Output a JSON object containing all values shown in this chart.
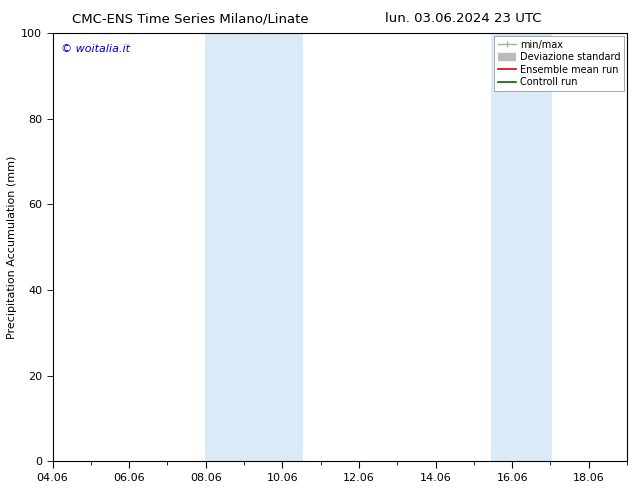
{
  "title_left": "CMC-ENS Time Series Milano/Linate",
  "title_right": "lun. 03.06.2024 23 UTC",
  "ylabel": "Precipitation Accumulation (mm)",
  "watermark": "© woitalia.it",
  "watermark_color": "#0000cc",
  "ylim": [
    0,
    100
  ],
  "yticks": [
    0,
    20,
    40,
    60,
    80,
    100
  ],
  "x_min": 4.0,
  "x_max": 19.0,
  "xtick_labels": [
    "04.06",
    "06.06",
    "08.06",
    "10.06",
    "12.06",
    "14.06",
    "16.06",
    "18.06"
  ],
  "xtick_positions": [
    4.0,
    6.0,
    8.0,
    10.0,
    12.0,
    14.0,
    16.0,
    18.0
  ],
  "shaded_bands": [
    {
      "x_start": 7.97,
      "x_end": 10.53
    },
    {
      "x_start": 15.45,
      "x_end": 17.05
    }
  ],
  "shaded_color": "#daeaf7",
  "legend_labels": [
    "min/max",
    "Deviazione standard",
    "Ensemble mean run",
    "Controll run"
  ],
  "legend_colors": [
    "#aaaaaa",
    "#cccccc",
    "#dd0000",
    "#006600"
  ],
  "bg_color": "#ffffff",
  "title_fontsize": 9.5,
  "ylabel_fontsize": 8,
  "tick_fontsize": 8,
  "watermark_fontsize": 8,
  "legend_fontsize": 7
}
